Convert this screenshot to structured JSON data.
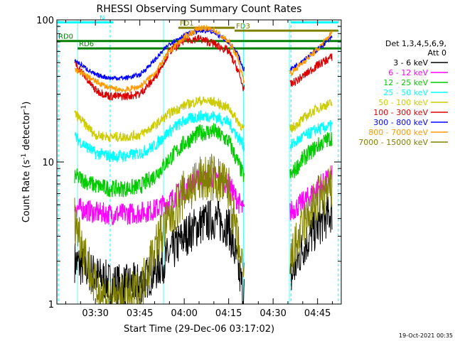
{
  "chart_data": {
    "type": "line",
    "title": "RHESSI Observing Summary Count Rates",
    "xlabel": "Start Time (29-Dec-06 03:17:02)",
    "ylabel": "Count Rate (s",
    "ylabel_sup": "-1",
    "ylabel_tail": " detector",
    "ylabel_close": ")",
    "y_scale": "log",
    "ylim": [
      1,
      100
    ],
    "xlim": [
      "03:17",
      "04:53"
    ],
    "grid": false,
    "x_ticks": [
      "03:30",
      "03:45",
      "04:00",
      "04:15",
      "04:30",
      "04:45"
    ],
    "x_tick_minutes": [
      210,
      225,
      240,
      255,
      270,
      285
    ],
    "x_range_minutes": [
      197,
      293
    ],
    "y_ticks": [
      "1",
      "10",
      "100"
    ],
    "y_tick_values": [
      1,
      10,
      100
    ],
    "legend_position": "right",
    "legend_header": [
      "Det 1,3,4,5,6,9,",
      "Att 0"
    ],
    "series": [
      {
        "name": "3 - 6 keV",
        "color": "#000000",
        "x": [
          203,
          210,
          215,
          220,
          225,
          230,
          235,
          240,
          245,
          250,
          255,
          260,
          261,
          276,
          280,
          285,
          290
        ],
        "values": [
          2.0,
          1.6,
          1.4,
          1.35,
          1.4,
          1.7,
          2.2,
          3.0,
          3.6,
          4.0,
          3.5,
          1.2,
          1.2,
          1.5,
          2.5,
          3.5,
          4.5
        ]
      },
      {
        "name": "6 - 12 keV",
        "color": "#ff00ff",
        "x": [
          203,
          210,
          215,
          220,
          225,
          230,
          235,
          240,
          245,
          250,
          255,
          260,
          261,
          276,
          280,
          285,
          290
        ],
        "values": [
          4.8,
          4.4,
          4.3,
          4.3,
          4.4,
          4.6,
          5.3,
          6.5,
          7.5,
          7.8,
          7.0,
          4.5,
          4.5,
          4.5,
          5.2,
          6.5,
          8.0
        ]
      },
      {
        "name": "12 - 25 keV",
        "color": "#00cc00",
        "x": [
          203,
          210,
          215,
          220,
          225,
          230,
          235,
          240,
          245,
          250,
          255,
          260,
          261,
          276,
          280,
          285,
          290
        ],
        "values": [
          8.0,
          6.8,
          6.5,
          6.5,
          6.7,
          8.0,
          10.5,
          13.5,
          16.0,
          16.5,
          14.0,
          8.0,
          8.0,
          8.0,
          10.5,
          13.0,
          15.0
        ]
      },
      {
        "name": "25 - 50 keV",
        "color": "#00ffff",
        "x": [
          203,
          210,
          215,
          220,
          225,
          230,
          235,
          240,
          245,
          250,
          255,
          260,
          261,
          276,
          280,
          285,
          290
        ],
        "values": [
          15.0,
          11.5,
          11.0,
          11.0,
          11.5,
          13.0,
          16.5,
          19.5,
          21.0,
          21.0,
          19.0,
          13.0,
          13.0,
          13.0,
          15.0,
          17.0,
          18.0
        ]
      },
      {
        "name": "50 - 100 keV",
        "color": "#cccc00",
        "x": [
          203,
          210,
          215,
          220,
          225,
          230,
          235,
          240,
          245,
          250,
          255,
          260,
          261,
          276,
          280,
          285,
          290
        ],
        "values": [
          22.0,
          15.5,
          15.0,
          15.0,
          15.5,
          18.0,
          22.0,
          25.0,
          27.0,
          26.5,
          24.0,
          17.0,
          17.0,
          17.0,
          20.0,
          24.0,
          26.0
        ]
      },
      {
        "name": "100 - 300 keV",
        "color": "#dd0000",
        "x": [
          203,
          210,
          215,
          220,
          225,
          230,
          235,
          240,
          245,
          250,
          255,
          258,
          260,
          261,
          276,
          280,
          285,
          290
        ],
        "values": [
          50.0,
          32.0,
          29.0,
          29.0,
          30.0,
          39.0,
          60.0,
          72.0,
          74.0,
          68.0,
          60.0,
          45.0,
          33.0,
          33.0,
          35.0,
          40.0,
          48.0,
          55.0
        ]
      },
      {
        "name": "300 - 800 keV",
        "color": "#0000ff",
        "x": [
          203,
          210,
          215,
          220,
          225,
          230,
          235,
          240,
          245,
          250,
          255,
          258,
          260,
          261,
          276,
          280,
          285,
          290
        ],
        "values": [
          52.0,
          41.0,
          39.0,
          39.0,
          41.0,
          52.0,
          68.0,
          78.0,
          84.0,
          82.0,
          70.0,
          58.0,
          45.0,
          45.0,
          45.0,
          52.0,
          62.0,
          76.0
        ]
      },
      {
        "name": "800 - 7000 keV",
        "color": "#ff9900",
        "x": [
          203,
          210,
          215,
          220,
          225,
          230,
          235,
          240,
          245,
          250,
          255,
          258,
          260,
          261,
          276,
          280,
          285,
          290
        ],
        "values": [
          45.0,
          37.0,
          33.0,
          32.0,
          34.0,
          42.0,
          60.0,
          75.0,
          88.0,
          85.0,
          70.0,
          55.0,
          38.0,
          38.0,
          42.0,
          50.0,
          62.0,
          82.0
        ]
      },
      {
        "name": "7000 - 15000 keV",
        "color": "#808000",
        "x": [
          203,
          210,
          215,
          220,
          225,
          230,
          235,
          240,
          245,
          250,
          255,
          260,
          261,
          276,
          280,
          285,
          290
        ],
        "values": [
          4.0,
          1.3,
          1.1,
          1.1,
          1.2,
          2.5,
          4.0,
          6.0,
          7.5,
          7.8,
          6.5,
          1.5,
          1.5,
          2.0,
          3.5,
          5.5,
          6.5
        ]
      }
    ],
    "annotations": [
      {
        "label": "N",
        "color": "#00ffff",
        "x_start": 197,
        "x_end": 216,
        "y": 96
      },
      {
        "label": "",
        "color": "#00ffff",
        "x_start": 276,
        "x_end": 292,
        "y": 96
      },
      {
        "label": "FD1",
        "color": "#808000",
        "x_start": 238,
        "x_end": 257,
        "y": 88
      },
      {
        "label": "FD3",
        "color": "#808000",
        "x_start": 257,
        "x_end": 292,
        "y": 84
      },
      {
        "label": "RD0",
        "color": "#008000",
        "x_start": 197,
        "x_end": 293,
        "y": 71
      },
      {
        "label": "RD6",
        "color": "#008000",
        "x_start": 204,
        "x_end": 293,
        "y": 63
      }
    ],
    "dashed_markers_minutes": [
      197.5,
      215,
      276,
      292
    ],
    "solid_markers_minutes": [
      204,
      233,
      260,
      275.5
    ],
    "timestamp": "19-Oct-2021 00:35"
  }
}
